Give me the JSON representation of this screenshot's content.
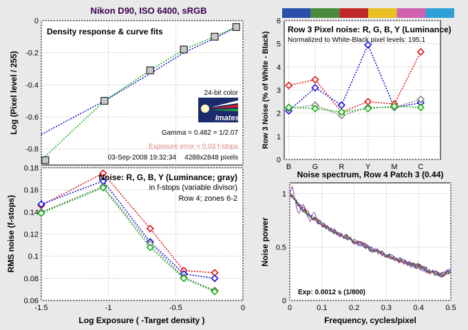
{
  "figure_title": "Nikon D90, ISO 6400, sRGB",
  "colors": {
    "red": "#e01010",
    "green": "#10b010",
    "blue": "#1010d8",
    "gray": "#808080",
    "spectrum": [
      "#3040c0",
      "#208030",
      "#b02020",
      "#9040c0",
      "#606060"
    ]
  },
  "color_bar": [
    "#2a4fa8",
    "#4a8a3a",
    "#c02828",
    "#e8c020",
    "#d060b0",
    "#30a0d8"
  ],
  "chart_data": [
    {
      "type": "scatter",
      "title": "Density response & curve fits",
      "xlim": [
        -1.5,
        0
      ],
      "ylim": [
        -0.9,
        0
      ],
      "xticks": [
        -1.5,
        -1,
        -0.5,
        0
      ],
      "yticks": [
        0,
        -0.2,
        -0.4,
        -0.6,
        -0.8
      ],
      "ytick_labels": [
        "0",
        "-0.2",
        "-0.4",
        "-0.6",
        "-0.8"
      ],
      "ylabel": "Log (Pixel level / 255)",
      "series": [
        {
          "color": "gray",
          "marker": "square",
          "x": [
            -1.47,
            -1.03,
            -0.69,
            -0.44,
            -0.21,
            -0.05
          ],
          "y": [
            -0.87,
            -0.5,
            -0.31,
            -0.18,
            -0.1,
            -0.04
          ]
        },
        {
          "color": "blue",
          "style": "dotted",
          "x": [
            -1.5,
            -1.03,
            -0.69,
            -0.44,
            -0.21,
            -0.05
          ],
          "y": [
            -0.71,
            -0.5,
            -0.33,
            -0.2,
            -0.11,
            -0.04
          ]
        },
        {
          "color": "green",
          "style": "dotted",
          "x": [
            -1.5,
            -1.03,
            -0.69,
            -0.44,
            -0.21,
            -0.05
          ],
          "y": [
            -0.87,
            -0.5,
            -0.31,
            -0.18,
            -0.1,
            -0.04
          ]
        }
      ],
      "annotations": {
        "logo_top": "24-bit color",
        "logo_word": "Imatest",
        "gamma": "Gamma = 0.482 = 1/2.07",
        "exposure_error": "Exposure error = 0.03 f-stops",
        "date": "03-Sep-2008 19:32:34",
        "pixels": "4288x2848 pixels"
      }
    },
    {
      "type": "line",
      "title": "Row 3 Pixel noise: R, G, B, Y (Luminance)",
      "subtitle": "Normalized to White-Black pixel levels: 195.1",
      "categories": [
        "B",
        "G",
        "R",
        "Y",
        "M",
        "C"
      ],
      "ylim": [
        0,
        6
      ],
      "yticks": [
        0,
        1,
        2,
        3,
        4,
        5,
        6
      ],
      "ylabel": "Row 3 Noise (% of White - Black)",
      "series": [
        {
          "color": "red",
          "values": [
            3.2,
            3.45,
            2.05,
            2.5,
            2.4,
            4.65
          ]
        },
        {
          "color": "blue",
          "values": [
            2.1,
            3.1,
            2.35,
            4.95,
            2.25,
            2.45
          ]
        },
        {
          "color": "gray",
          "values": [
            2.2,
            2.35,
            1.9,
            2.25,
            2.25,
            2.6
          ]
        },
        {
          "color": "green",
          "values": [
            2.25,
            2.2,
            2.05,
            2.2,
            2.3,
            2.25
          ]
        }
      ]
    },
    {
      "type": "line",
      "title": "Noise: R, G, B, Y (Luminance; gray)",
      "subtitle1": "in f-stops (variable divisor)",
      "subtitle2": "Row 4; zones 6-2",
      "xlim": [
        -1.5,
        0
      ],
      "ylim": [
        0.06,
        0.18
      ],
      "xticks": [
        -1.5,
        -1,
        -0.5,
        0
      ],
      "yticks": [
        0.06,
        0.08,
        0.1,
        0.12,
        0.14,
        0.16,
        0.18
      ],
      "xlabel": "Log Exposure ( -Target density )",
      "ylabel": "RMS noise (f-stops)",
      "x": [
        -1.5,
        -1.04,
        -0.69,
        -0.44,
        -0.21
      ],
      "series": [
        {
          "color": "red",
          "values": [
            0.146,
            0.175,
            0.125,
            0.087,
            0.085
          ]
        },
        {
          "color": "blue",
          "values": [
            0.147,
            0.168,
            0.113,
            0.084,
            0.08
          ]
        },
        {
          "color": "gray",
          "values": [
            0.14,
            0.163,
            0.111,
            0.081,
            0.069
          ]
        },
        {
          "color": "green",
          "values": [
            0.139,
            0.162,
            0.108,
            0.08,
            0.068
          ]
        }
      ]
    },
    {
      "type": "line",
      "title": "Noise spectrum, Row 4 Patch 3 (0.44)",
      "xlim": [
        0,
        0.5
      ],
      "ylim": [
        0,
        1.1
      ],
      "xticks": [
        0,
        0.1,
        0.2,
        0.3,
        0.4,
        0.5
      ],
      "yticks": [
        0,
        0.5,
        1
      ],
      "xlabel": "Frequency, cycles/pixel",
      "ylabel": "Noise power",
      "annotation": "Exp:   0.0012 s   (1/800)",
      "x": [
        0,
        0.01,
        0.02,
        0.03,
        0.05,
        0.07,
        0.1,
        0.13,
        0.15,
        0.18,
        0.2,
        0.23,
        0.25,
        0.28,
        0.3,
        0.33,
        0.35,
        0.38,
        0.4,
        0.42,
        0.45,
        0.47,
        0.5
      ],
      "series": [
        {
          "color": "gray",
          "values": [
            1.0,
            0.98,
            0.93,
            0.88,
            0.83,
            0.78,
            0.71,
            0.66,
            0.62,
            0.59,
            0.55,
            0.52,
            0.48,
            0.45,
            0.42,
            0.39,
            0.37,
            0.33,
            0.32,
            0.29,
            0.26,
            0.24,
            0.28
          ]
        }
      ]
    }
  ]
}
